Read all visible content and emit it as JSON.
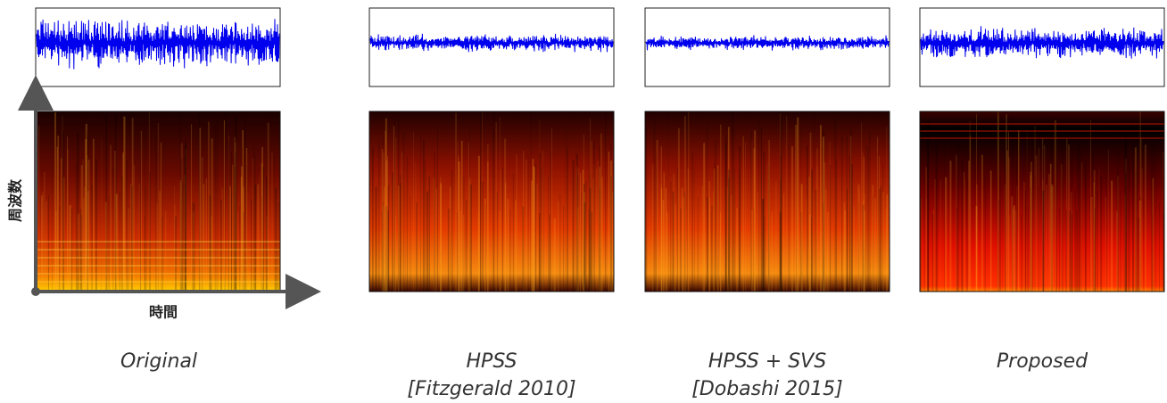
{
  "axes": {
    "y_label": "周波数",
    "x_label": "時間"
  },
  "panels": [
    {
      "caption": [
        "Original"
      ]
    },
    {
      "caption": [
        "HPSS",
        "[Fitzgerald 2010]"
      ]
    },
    {
      "caption": [
        "HPSS + SVS",
        "[Dobashi 2015]"
      ]
    },
    {
      "caption": [
        "Proposed"
      ]
    }
  ]
}
